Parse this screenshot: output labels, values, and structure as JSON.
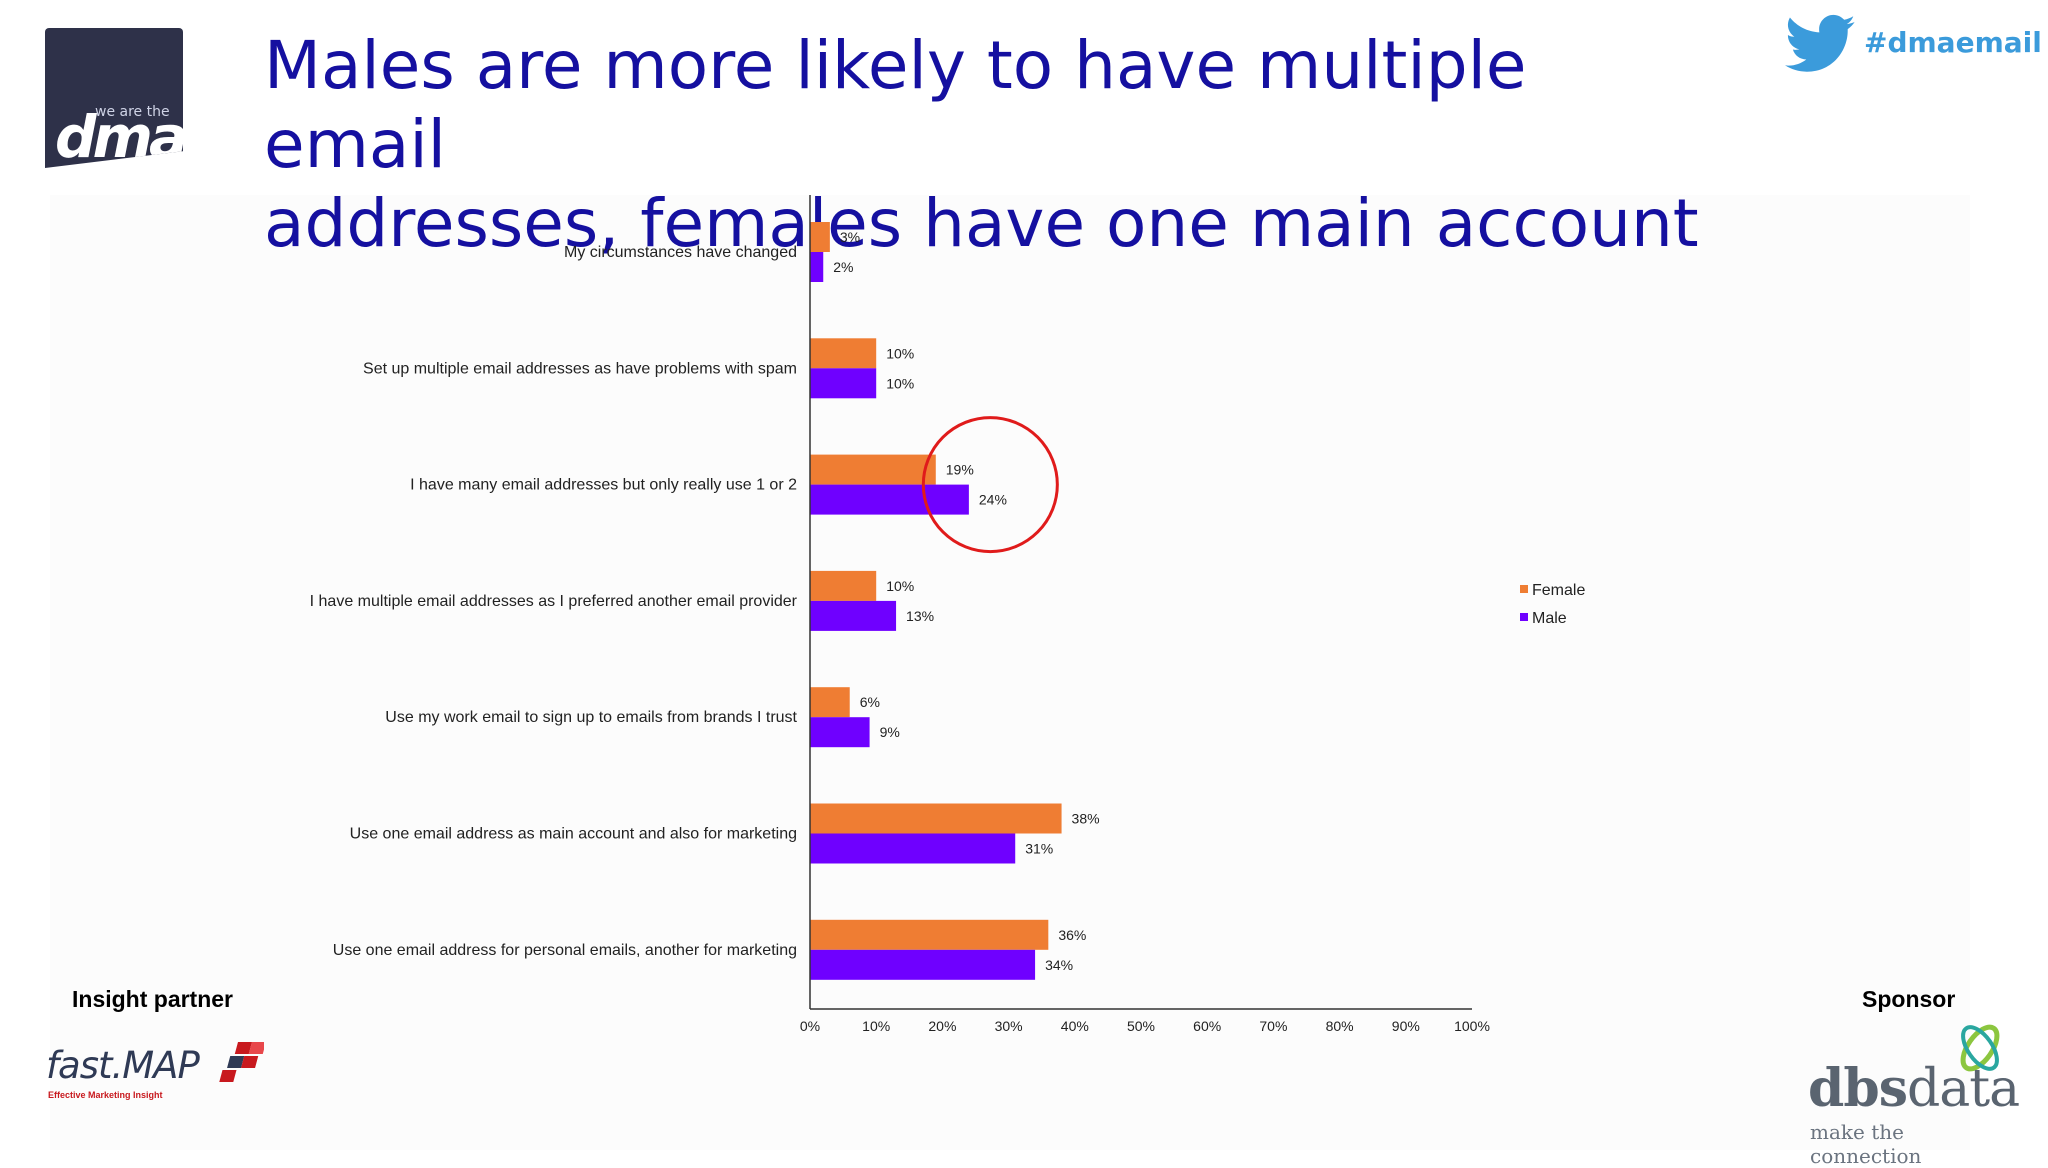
{
  "header": {
    "title_line1": "Males are more likely to have multiple email",
    "title_line2": "addresses, females have one main account",
    "hashtag": "#dmaemail",
    "logo_small": "we are the",
    "logo_big": "dma"
  },
  "footer": {
    "insight_label": "Insight partner",
    "sponsor_label": "Sponsor",
    "fastmap_name": "fast.MAP",
    "fastmap_tagline": "Effective Marketing Insight",
    "dbs_name_bold": "dbs",
    "dbs_name_rest": "data",
    "dbs_tagline": "make the connection"
  },
  "colors": {
    "female": "#ef7d33",
    "male": "#6f00ff",
    "title": "#1510a0",
    "highlight": "#e01b1b"
  },
  "chart_data": {
    "type": "bar",
    "orientation": "horizontal",
    "categories": [
      "My circumstances have changed",
      "Set up multiple email addresses as have problems with spam",
      "I have many email addresses but only really use 1 or 2",
      "I have multiple email addresses as I preferred another email provider",
      "Use my work email to sign up to emails from brands I trust",
      "Use one email address as main account and also for marketing",
      "Use one email address for personal emails, another for marketing"
    ],
    "series": [
      {
        "name": "Female",
        "values": [
          3,
          10,
          19,
          10,
          6,
          38,
          36
        ],
        "labels": [
          "3%",
          "10%",
          "19%",
          "10%",
          "6%",
          "38%",
          "36%"
        ]
      },
      {
        "name": "Male",
        "values": [
          2,
          10,
          24,
          13,
          9,
          31,
          34
        ],
        "labels": [
          "2%",
          "10%",
          "24%",
          "13%",
          "9%",
          "31%",
          "34%"
        ]
      }
    ],
    "xlim": [
      0,
      100
    ],
    "xticks": [
      "0%",
      "10%",
      "20%",
      "30%",
      "40%",
      "50%",
      "60%",
      "70%",
      "80%",
      "90%",
      "100%"
    ],
    "legend_position": "right",
    "grid": false,
    "highlight_category_index": 2
  }
}
